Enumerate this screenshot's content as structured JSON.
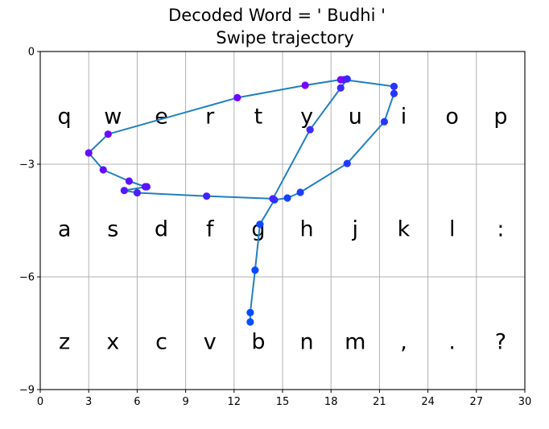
{
  "chart_data": {
    "type": "line",
    "title": "Decoded  Word = ' Budhi '",
    "subtitle": "Swipe trajectory",
    "xlabel": "",
    "ylabel": "",
    "xlim": [
      0,
      30
    ],
    "ylim": [
      -9,
      0
    ],
    "xticks": [
      0,
      3,
      6,
      9,
      12,
      15,
      18,
      21,
      24,
      27,
      30
    ],
    "yticks": [
      0,
      -3,
      -6,
      -9
    ],
    "ytick_labels": [
      "0",
      "−3",
      "−6",
      "−9"
    ],
    "grid": true,
    "keyboard": {
      "rows": [
        {
          "y": -1.7,
          "keys": [
            {
              "x": 1.5,
              "label": "q"
            },
            {
              "x": 4.5,
              "label": "w"
            },
            {
              "x": 7.5,
              "label": "e"
            },
            {
              "x": 10.5,
              "label": "r"
            },
            {
              "x": 13.5,
              "label": "t"
            },
            {
              "x": 16.5,
              "label": "y"
            },
            {
              "x": 19.5,
              "label": "u"
            },
            {
              "x": 22.5,
              "label": "i"
            },
            {
              "x": 25.5,
              "label": "o"
            },
            {
              "x": 28.5,
              "label": "p"
            }
          ]
        },
        {
          "y": -4.7,
          "keys": [
            {
              "x": 1.5,
              "label": "a"
            },
            {
              "x": 4.5,
              "label": "s"
            },
            {
              "x": 7.5,
              "label": "d"
            },
            {
              "x": 10.5,
              "label": "f"
            },
            {
              "x": 13.5,
              "label": "g"
            },
            {
              "x": 16.5,
              "label": "h"
            },
            {
              "x": 19.5,
              "label": "j"
            },
            {
              "x": 22.5,
              "label": "k"
            },
            {
              "x": 25.5,
              "label": "l"
            },
            {
              "x": 28.5,
              "label": ":"
            }
          ]
        },
        {
          "y": -7.7,
          "keys": [
            {
              "x": 1.5,
              "label": "z"
            },
            {
              "x": 4.5,
              "label": "x"
            },
            {
              "x": 7.5,
              "label": "c"
            },
            {
              "x": 10.5,
              "label": "v"
            },
            {
              "x": 13.5,
              "label": "b"
            },
            {
              "x": 16.5,
              "label": "n"
            },
            {
              "x": 19.5,
              "label": "m"
            },
            {
              "x": 22.5,
              "label": ","
            },
            {
              "x": 25.5,
              "label": "."
            },
            {
              "x": 28.5,
              "label": "?"
            }
          ]
        }
      ]
    },
    "series": [
      {
        "line_color": "#1f7fbf",
        "point_color_start": "#0050ff",
        "point_color_end": "#7a00ff",
        "points": [
          [
            13.0,
            -7.2
          ],
          [
            13.0,
            -6.95
          ],
          [
            13.3,
            -5.82
          ],
          [
            13.6,
            -4.6
          ],
          [
            14.5,
            -3.95
          ],
          [
            15.3,
            -3.9
          ],
          [
            16.1,
            -3.75
          ],
          [
            19.0,
            -2.98
          ],
          [
            21.3,
            -1.87
          ],
          [
            21.9,
            -1.12
          ],
          [
            21.9,
            -0.93
          ],
          [
            18.8,
            -0.75
          ],
          [
            19.0,
            -0.73
          ],
          [
            18.6,
            -0.97
          ],
          [
            16.7,
            -2.08
          ],
          [
            14.4,
            -3.92
          ],
          [
            10.3,
            -3.85
          ],
          [
            6.0,
            -3.76
          ],
          [
            5.2,
            -3.7
          ],
          [
            6.6,
            -3.6
          ],
          [
            6.5,
            -3.6
          ],
          [
            5.5,
            -3.45
          ],
          [
            3.9,
            -3.15
          ],
          [
            3.0,
            -2.7
          ],
          [
            4.2,
            -2.2
          ],
          [
            12.2,
            -1.23
          ],
          [
            16.4,
            -0.9
          ],
          [
            18.6,
            -0.75
          ]
        ]
      }
    ]
  }
}
